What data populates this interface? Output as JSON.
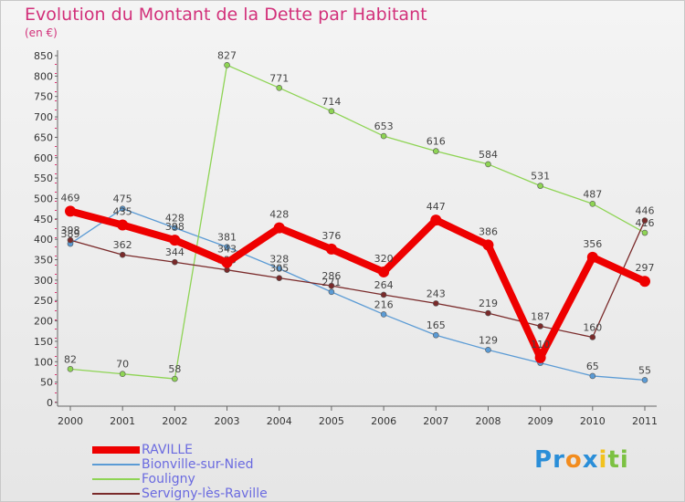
{
  "title": "Evolution du Montant de la Dette par Habitant",
  "subtitle": "(en €)",
  "brand": {
    "letters": [
      {
        "ch": "P",
        "color": "#2a8ed8"
      },
      {
        "ch": "r",
        "color": "#2a8ed8"
      },
      {
        "ch": "o",
        "color": "#f28c1e"
      },
      {
        "ch": "x",
        "color": "#2a8ed8"
      },
      {
        "ch": "i",
        "color": "#f2c21e"
      },
      {
        "ch": "t",
        "color": "#7cc142"
      },
      {
        "ch": "i",
        "color": "#7cc142"
      }
    ]
  },
  "chart_data": {
    "type": "line",
    "x": [
      "2000",
      "2001",
      "2002",
      "2003",
      "2004",
      "2005",
      "2006",
      "2007",
      "2008",
      "2009",
      "2010",
      "2011"
    ],
    "ylim": [
      0,
      850
    ],
    "yticks": [
      0,
      50,
      100,
      150,
      200,
      250,
      300,
      350,
      400,
      450,
      500,
      550,
      600,
      650,
      700,
      750,
      800,
      850
    ],
    "grid": false,
    "legend_position": "bottom-left",
    "series": [
      {
        "name": "RAVILLE",
        "color": "#ee0000",
        "width": 8,
        "marker": 6,
        "values": [
          469,
          435,
          398,
          343,
          428,
          376,
          320,
          447,
          386,
          110,
          356,
          297
        ],
        "labels": [
          "469",
          "435",
          "398",
          "343",
          "428",
          "376",
          "320",
          "447",
          "386",
          "110",
          "356",
          "297"
        ]
      },
      {
        "name": "Bionville-sur-Nied",
        "color": "#5b9bd5",
        "width": 1.3,
        "marker": 3,
        "values": [
          389,
          475,
          428,
          381,
          328,
          271,
          216,
          165,
          129,
          97,
          65,
          55
        ],
        "labels": [
          "389",
          "475",
          "428",
          "381",
          "328",
          "271",
          "216",
          "165",
          "129",
          "97",
          "65",
          "55"
        ]
      },
      {
        "name": "Fouligny",
        "color": "#8ed454",
        "width": 1.3,
        "marker": 3,
        "values": [
          82,
          70,
          58,
          827,
          771,
          714,
          653,
          616,
          584,
          531,
          487,
          416
        ],
        "labels": [
          "82",
          "70",
          "58",
          "827",
          "771",
          "714",
          "653",
          "616",
          "584",
          "531",
          "487",
          "416"
        ]
      },
      {
        "name": "Servigny-lès-Raville",
        "color": "#7a2a2a",
        "width": 1.3,
        "marker": 3,
        "values": [
          398,
          362,
          344,
          325,
          305,
          286,
          264,
          243,
          219,
          187,
          160,
          446
        ],
        "labels": [
          "398",
          "362",
          "344",
          "325",
          "305",
          "286",
          "264",
          "243",
          "219",
          "187",
          "160",
          "446"
        ]
      }
    ]
  }
}
